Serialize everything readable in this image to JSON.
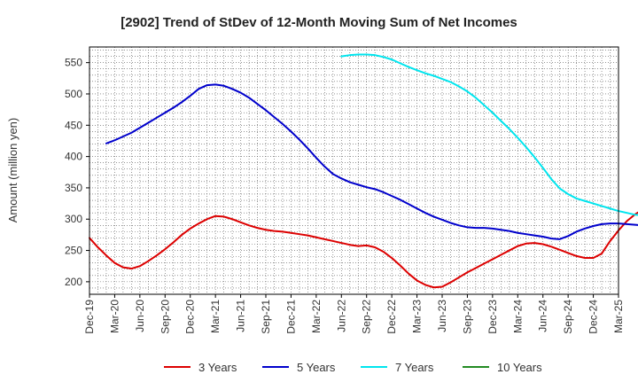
{
  "chart_data": {
    "type": "line",
    "title": "[2902]  Trend of StDev of 12-Month Moving Sum of Net Incomes",
    "xlabel": "",
    "ylabel": "Amount (million yen)",
    "ylim": [
      180,
      575
    ],
    "yticks": [
      200,
      250,
      300,
      350,
      400,
      450,
      500,
      550
    ],
    "x_ticks": [
      "Dec-19",
      "Mar-20",
      "Jun-20",
      "Sep-20",
      "Dec-20",
      "Mar-21",
      "Jun-21",
      "Sep-21",
      "Dec-21",
      "Mar-22",
      "Jun-22",
      "Sep-22",
      "Dec-22",
      "Mar-23",
      "Jun-23",
      "Sep-23",
      "Dec-23",
      "Mar-24",
      "Jun-24",
      "Sep-24",
      "Dec-24",
      "Mar-25"
    ],
    "x_unit": "months since Dec-19",
    "grid": true,
    "legend_position": "bottom",
    "series": [
      {
        "name": "3 Years",
        "color": "#dd0000",
        "start": 0,
        "values": [
          270,
          255,
          242,
          230,
          223,
          221,
          225,
          233,
          242,
          252,
          263,
          275,
          285,
          293,
          300,
          305,
          304,
          300,
          295,
          290,
          286,
          283,
          281,
          280,
          278,
          276,
          274,
          271,
          268,
          265,
          262,
          259,
          257,
          258,
          255,
          248,
          238,
          226,
          213,
          202,
          195,
          191,
          192,
          199,
          207,
          215,
          222,
          229,
          236,
          243,
          250,
          257,
          261,
          262,
          260,
          256,
          251,
          246,
          241,
          238,
          238,
          245,
          265,
          282,
          297,
          308,
          316,
          320,
          319,
          318,
          318,
          320,
          330
        ]
      },
      {
        "name": "5 Years",
        "color": "#0000cc",
        "start": 2,
        "values": [
          421,
          426,
          432,
          438,
          446,
          454,
          462,
          470,
          478,
          487,
          497,
          508,
          514,
          515,
          513,
          508,
          502,
          494,
          484,
          474,
          463,
          452,
          440,
          427,
          413,
          398,
          384,
          372,
          365,
          359,
          355,
          351,
          348,
          343,
          337,
          331,
          324,
          317,
          310,
          304,
          299,
          294,
          290,
          287,
          286,
          286,
          285,
          283,
          281,
          278,
          276,
          274,
          272,
          269,
          268,
          273,
          280,
          285,
          289,
          292,
          293,
          293,
          292,
          291,
          290,
          291,
          294
        ]
      },
      {
        "name": "7 Years",
        "color": "#00e5ee",
        "start": 30,
        "values": [
          560,
          562,
          563,
          563,
          562,
          559,
          555,
          549,
          543,
          538,
          533,
          529,
          524,
          519,
          512,
          504,
          494,
          482,
          470,
          457,
          444,
          430,
          415,
          399,
          382,
          364,
          349,
          340,
          333,
          329,
          325,
          321,
          317,
          313,
          310,
          307,
          306,
          306
        ]
      },
      {
        "name": "10 Years",
        "color": "#228b22",
        "start": 0,
        "values": []
      }
    ]
  }
}
